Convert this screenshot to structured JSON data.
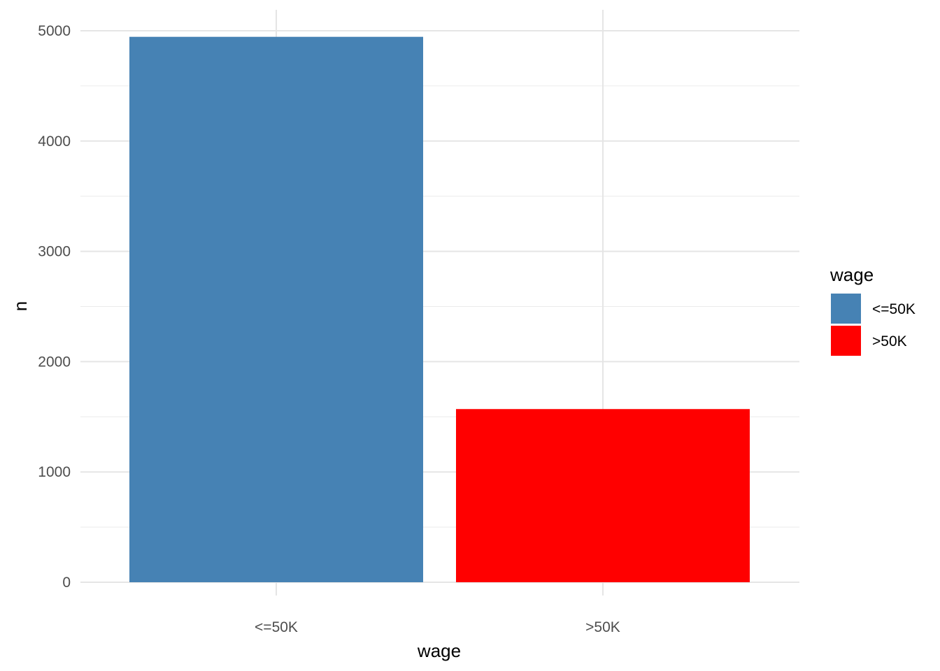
{
  "chart_data": {
    "type": "bar",
    "categories": [
      "<=50K",
      ">50K"
    ],
    "values": [
      4945,
      1570
    ],
    "colors": [
      "#4682b4",
      "#ff0000"
    ],
    "title": "",
    "xlabel": "wage",
    "ylabel": "n",
    "ylim": [
      0,
      5200
    ],
    "yticks": [
      0,
      1000,
      2000,
      3000,
      4000,
      5000
    ],
    "ytick_labels": [
      "0",
      "1000",
      "2000",
      "3000",
      "4000",
      "5000"
    ],
    "grid": true,
    "legend": {
      "title": "wage",
      "placement": "right",
      "entries": [
        "<=50K",
        ">50K"
      ]
    }
  }
}
